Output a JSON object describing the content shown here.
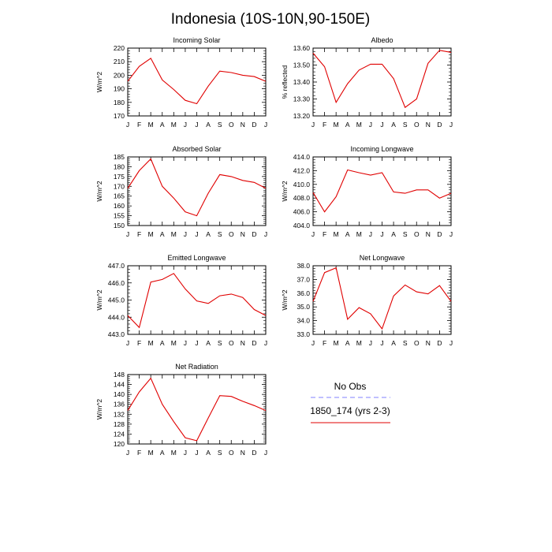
{
  "figure": {
    "title": "Indonesia (10S-10N,90-150E)"
  },
  "legend": {
    "obs_label": "No Obs",
    "obs_color": "#8080ff",
    "model_label": "1850_174 (yrs 2-3)",
    "model_color": "#e00000"
  },
  "chart_data": [
    {
      "type": "line",
      "title": "Incoming Solar",
      "ylabel": "W/m^2",
      "xlabel": "",
      "ylim": [
        170,
        220
      ],
      "yticks": [
        "170",
        "180",
        "190",
        "200",
        "210",
        "220"
      ],
      "x": [
        "J",
        "F",
        "M",
        "A",
        "M",
        "J",
        "J",
        "A",
        "S",
        "O",
        "N",
        "D",
        "J"
      ],
      "series": [
        {
          "name": "1850_174 (yrs 2-3)",
          "values": [
            195.5,
            206.5,
            212.5,
            196.5,
            189.5,
            181.5,
            179,
            192,
            203,
            202,
            200,
            199,
            195.5
          ]
        }
      ]
    },
    {
      "type": "line",
      "title": "Albedo",
      "ylabel": "% reflected",
      "xlabel": "",
      "ylim": [
        13.2,
        13.6
      ],
      "yticks": [
        "13.20",
        "13.30",
        "13.40",
        "13.50",
        "13.60"
      ],
      "x": [
        "J",
        "F",
        "M",
        "A",
        "M",
        "J",
        "J",
        "A",
        "S",
        "O",
        "N",
        "D",
        "J"
      ],
      "series": [
        {
          "name": "1850_174 (yrs 2-3)",
          "values": [
            13.57,
            13.49,
            13.28,
            13.39,
            13.47,
            13.505,
            13.505,
            13.42,
            13.25,
            13.3,
            13.51,
            13.587,
            13.575
          ]
        }
      ]
    },
    {
      "type": "line",
      "title": "Absorbed Solar",
      "ylabel": "W/m^2",
      "xlabel": "",
      "ylim": [
        150,
        185
      ],
      "yticks": [
        "150",
        "155",
        "160",
        "165",
        "170",
        "175",
        "180",
        "185"
      ],
      "x": [
        "J",
        "F",
        "M",
        "A",
        "M",
        "J",
        "J",
        "A",
        "S",
        "O",
        "N",
        "D",
        "J"
      ],
      "series": [
        {
          "name": "1850_174 (yrs 2-3)",
          "values": [
            169,
            178,
            184,
            170,
            164,
            157,
            155,
            166.5,
            176,
            175,
            173,
            172,
            169
          ]
        }
      ]
    },
    {
      "type": "line",
      "title": "Incoming Longwave",
      "ylabel": "W/m^2",
      "xlabel": "",
      "ylim": [
        404,
        414
      ],
      "yticks": [
        "404.0",
        "406.0",
        "408.0",
        "410.0",
        "412.0",
        "414.0"
      ],
      "x": [
        "J",
        "F",
        "M",
        "A",
        "M",
        "J",
        "J",
        "A",
        "S",
        "O",
        "N",
        "D",
        "J"
      ],
      "series": [
        {
          "name": "1850_174 (yrs 2-3)",
          "values": [
            408.8,
            406,
            408.2,
            412.1,
            411.7,
            411.35,
            411.7,
            408.9,
            408.7,
            409.2,
            409.2,
            408,
            408.7
          ]
        }
      ]
    },
    {
      "type": "line",
      "title": "Emitted Longwave",
      "ylabel": "W/m^2",
      "xlabel": "",
      "ylim": [
        443,
        447
      ],
      "yticks": [
        "443.0",
        "444.0",
        "445.0",
        "446.0",
        "447.0"
      ],
      "x": [
        "J",
        "F",
        "M",
        "A",
        "M",
        "J",
        "J",
        "A",
        "S",
        "O",
        "N",
        "D",
        "J"
      ],
      "series": [
        {
          "name": "1850_174 (yrs 2-3)",
          "values": [
            444.1,
            443.4,
            446.05,
            446.2,
            446.55,
            445.65,
            444.95,
            444.8,
            445.25,
            445.35,
            445.15,
            444.45,
            444.1
          ]
        }
      ]
    },
    {
      "type": "line",
      "title": "Net Longwave",
      "ylabel": "W/m^2",
      "xlabel": "",
      "ylim": [
        33,
        38
      ],
      "yticks": [
        "33.0",
        "34.0",
        "35.0",
        "36.0",
        "37.0",
        "38.0"
      ],
      "x": [
        "J",
        "F",
        "M",
        "A",
        "M",
        "J",
        "J",
        "A",
        "S",
        "O",
        "N",
        "D",
        "J"
      ],
      "series": [
        {
          "name": "1850_174 (yrs 2-3)",
          "values": [
            35.4,
            37.5,
            37.85,
            34.1,
            34.95,
            34.5,
            33.4,
            35.8,
            36.6,
            36.1,
            35.95,
            36.55,
            35.4
          ]
        }
      ]
    },
    {
      "type": "line",
      "title": "Net Radiation",
      "ylabel": "W/m^2",
      "xlabel": "",
      "ylim": [
        120,
        148
      ],
      "yticks": [
        "120",
        "124",
        "128",
        "132",
        "136",
        "140",
        "144",
        "148"
      ],
      "x": [
        "J",
        "F",
        "M",
        "A",
        "M",
        "J",
        "J",
        "A",
        "S",
        "O",
        "N",
        "D",
        "J"
      ],
      "series": [
        {
          "name": "1850_174 (yrs 2-3)",
          "values": [
            133.5,
            141,
            146.5,
            136,
            129,
            122.5,
            121.3,
            130.5,
            139.5,
            139.2,
            137.2,
            135.5,
            133.5
          ]
        }
      ]
    }
  ]
}
